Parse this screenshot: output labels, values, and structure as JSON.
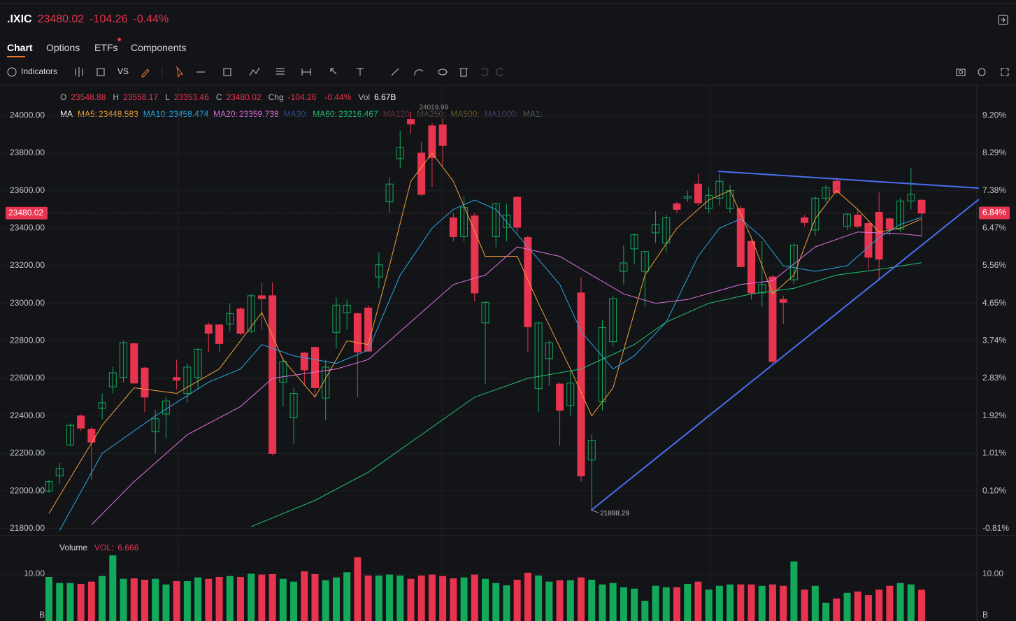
{
  "header": {
    "symbol": ".IXIC",
    "price": 23480.02,
    "change": -104.26,
    "change_pct": "-0.44%"
  },
  "tabs": [
    "Chart",
    "Options",
    "ETFs",
    "Components"
  ],
  "toolbar": {
    "indicators": "Indicators",
    "compare": "VS"
  },
  "ohlc": {
    "o_label": "O",
    "o": 23548.88,
    "h_label": "H",
    "h": 23558.17,
    "l_label": "L",
    "l": 23353.46,
    "c_label": "C",
    "c": 23480.02,
    "chg_label": "Chg",
    "chg": -104.26,
    "chg_pct": "-0.44%",
    "vol_label": "Vol",
    "vol": "6.67B"
  },
  "chart_data": {
    "type": "candlestick",
    "up_color": "#12a95b",
    "down_color": "#e8344e",
    "ylim": [
      21762,
      24161
    ],
    "yticks": [
      {
        "value": 24000,
        "label": "24000.00"
      },
      {
        "value": 23800,
        "label": "23800.00"
      },
      {
        "value": 23600,
        "label": "23600.00"
      },
      {
        "value": 23400,
        "label": "23400.00"
      },
      {
        "value": 23200,
        "label": "23200.00"
      },
      {
        "value": 23000,
        "label": "23000.00"
      },
      {
        "value": 22800,
        "label": "22800.00"
      },
      {
        "value": 22600,
        "label": "22600.00"
      },
      {
        "value": 22400,
        "label": "22400.00"
      },
      {
        "value": 22200,
        "label": "22200.00"
      },
      {
        "value": 22000,
        "label": "22000.00"
      },
      {
        "value": 21800,
        "label": "21800.00"
      }
    ],
    "y2lim": [
      -0.983,
      9.933
    ],
    "y2ticks": [
      {
        "value": 9.2,
        "label": "9.20%"
      },
      {
        "value": 8.29,
        "label": "8.29%"
      },
      {
        "value": 7.38,
        "label": "7.38%"
      },
      {
        "value": 6.47,
        "label": "6.47%"
      },
      {
        "value": 5.56,
        "label": "5.56%"
      },
      {
        "value": 4.65,
        "label": "4.65%"
      },
      {
        "value": 3.74,
        "label": "3.74%"
      },
      {
        "value": 2.83,
        "label": "2.83%"
      },
      {
        "value": 1.92,
        "label": "1.92%"
      },
      {
        "value": 1.01,
        "label": "1.01%"
      },
      {
        "value": 0.1,
        "label": "0.10%"
      },
      {
        "value": -0.81,
        "label": "-0.81%"
      }
    ],
    "last_pct": {
      "value": 6.84,
      "label": "6.84%"
    },
    "open": [
      22000,
      22080,
      22245,
      22400,
      22330,
      22440,
      22555,
      22605,
      22785,
      22655,
      22315,
      22410,
      22605,
      22520,
      22605,
      22885,
      22885,
      22890,
      22970,
      22850,
      23040,
      23040,
      22580,
      22390,
      22735,
      22765,
      22495,
      22845,
      22950,
      22945,
      22975,
      23140,
      23540,
      23770,
      23980,
      23800,
      23945,
      23950,
      23455,
      23355,
      23465,
      22895,
      23355,
      23405,
      23565,
      23350,
      22545,
      22705,
      22570,
      22455,
      23055,
      22165,
      22475,
      22795,
      23170,
      23290,
      23170,
      23375,
      23320,
      23530,
      23560,
      23635,
      23505,
      23560,
      23505,
      23505,
      23330,
      23055,
      23140,
      23020,
      23125,
      23455,
      23390,
      23560,
      23650,
      23410,
      23470,
      23425,
      23485,
      23450,
      23395,
      23545,
      23548.88
    ],
    "high": [
      22060,
      22150,
      22360,
      22410,
      22340,
      22520,
      22660,
      22800,
      22790,
      22660,
      22430,
      22500,
      22700,
      22680,
      22760,
      22900,
      22890,
      23000,
      22980,
      23050,
      23110,
      23110,
      22710,
      22550,
      22740,
      22770,
      22700,
      23030,
      23020,
      22950,
      22990,
      23270,
      23670,
      23920,
      24019.99,
      23860,
      23960,
      23985,
      23480,
      23570,
      23480,
      23010,
      23535,
      23530,
      23570,
      23360,
      22900,
      22800,
      22580,
      22640,
      23140,
      22300,
      22910,
      23040,
      23310,
      23370,
      23280,
      23490,
      23470,
      23540,
      23600,
      23690,
      23620,
      23690,
      23630,
      23520,
      23340,
      23330,
      23150,
      23040,
      23320,
      23470,
      23570,
      23630,
      23670,
      23480,
      23500,
      23440,
      23590,
      23460,
      23560,
      23720,
      23558.17
    ],
    "low": [
      21990,
      22040,
      22240,
      22320,
      22060,
      22380,
      22520,
      22580,
      22570,
      22420,
      22200,
      22280,
      22540,
      22470,
      22540,
      22740,
      22740,
      22850,
      22830,
      22840,
      22860,
      22190,
      22450,
      22250,
      22560,
      22500,
      22380,
      22760,
      22860,
      22500,
      22740,
      23080,
      23480,
      23720,
      23900,
      23570,
      23620,
      23730,
      23330,
      23330,
      23010,
      22570,
      23300,
      23330,
      23370,
      22740,
      22420,
      22560,
      22240,
      22400,
      22050,
      21898.29,
      22430,
      22770,
      23100,
      23210,
      22980,
      23320,
      23270,
      23480,
      23540,
      23520,
      23480,
      23520,
      23480,
      23190,
      23020,
      22980,
      22680,
      22890,
      23100,
      23410,
      23360,
      23540,
      23580,
      23390,
      23400,
      23180,
      23120,
      23360,
      23380,
      23500,
      23353.46
    ],
    "close": [
      22050,
      22120,
      22350,
      22335,
      22260,
      22470,
      22630,
      22790,
      22575,
      22500,
      22385,
      22480,
      22590,
      22660,
      22755,
      22840,
      22785,
      22945,
      22840,
      23040,
      23025,
      22200,
      22690,
      22520,
      22645,
      22550,
      22660,
      22990,
      22990,
      22740,
      22745,
      23205,
      23635,
      23830,
      23955,
      23580,
      23775,
      23840,
      23355,
      23510,
      23055,
      23005,
      23530,
      23470,
      23405,
      22875,
      22895,
      22790,
      22430,
      22575,
      22080,
      22270,
      22870,
      23025,
      23215,
      23365,
      23275,
      23420,
      23455,
      23500,
      23570,
      23535,
      23575,
      23650,
      23600,
      23195,
      23055,
      23100,
      22690,
      23005,
      23310,
      23430,
      23560,
      23615,
      23590,
      23475,
      23410,
      23245,
      23235,
      23395,
      23545,
      23580,
      23480.02
    ],
    "volume_label": "Volume",
    "vol_indicator": "VOL:",
    "volume": [
      9.4,
      8.1,
      8.1,
      7.9,
      8.4,
      9.6,
      14.0,
      9.0,
      9.1,
      8.8,
      9.0,
      7.8,
      8.5,
      8.5,
      9.3,
      9.0,
      9.4,
      9.6,
      9.4,
      10.1,
      9.9,
      10.0,
      9.0,
      8.4,
      10.6,
      10.0,
      8.7,
      9.3,
      10.4,
      13.6,
      9.7,
      9.7,
      9.9,
      9.7,
      9.0,
      9.7,
      9.9,
      9.6,
      9.1,
      9.3,
      9.9,
      9.0,
      8.1,
      7.6,
      8.8,
      10.3,
      9.7,
      8.4,
      8.7,
      8.7,
      9.3,
      8.8,
      7.8,
      8.1,
      7.2,
      6.9,
      4.3,
      7.5,
      7.2,
      7.2,
      7.9,
      8.4,
      6.7,
      7.5,
      7.8,
      7.8,
      7.8,
      7.5,
      7.8,
      7.5,
      12.7,
      6.7,
      7.5,
      3.9,
      4.8,
      6.0,
      6.3,
      5.5,
      6.7,
      7.5,
      8.1,
      7.8,
      6.666
    ],
    "vol_ylim": [
      0,
      17.6
    ],
    "vol_yticks": [
      {
        "value": 10,
        "label": "10.00"
      }
    ],
    "vol_unit": "B",
    "ma_label": "MA",
    "series": [
      {
        "name": "MA5:",
        "color": "#f0a23a",
        "x": [
          0,
          5,
          8,
          12,
          16,
          20,
          22,
          25,
          28,
          30,
          32,
          34,
          36,
          38,
          41,
          44,
          46,
          49,
          51,
          53,
          56,
          59,
          62,
          64,
          66,
          68,
          70,
          72,
          74,
          76,
          78,
          80,
          82
        ],
        "values": [
          21880,
          22350,
          22550,
          22520,
          22650,
          22950,
          22700,
          22500,
          22800,
          22780,
          23200,
          23650,
          23800,
          23650,
          23250,
          23250,
          23000,
          22650,
          22400,
          22550,
          23150,
          23400,
          23550,
          23600,
          23350,
          23050,
          23150,
          23450,
          23600,
          23500,
          23380,
          23400,
          23448.583
        ]
      },
      {
        "name": "MA10:",
        "color": "#2aa8e2",
        "x": [
          1,
          5,
          10,
          15,
          18,
          20,
          23,
          27,
          30,
          33,
          36,
          38,
          40,
          42,
          45,
          48,
          50,
          53,
          55,
          58,
          61,
          63,
          65,
          67,
          69,
          72,
          75,
          78,
          80,
          82
        ],
        "values": [
          21790,
          22200,
          22400,
          22580,
          22650,
          22780,
          22720,
          22680,
          22750,
          23150,
          23400,
          23500,
          23550,
          23500,
          23300,
          23100,
          22850,
          22650,
          22720,
          22900,
          23250,
          23400,
          23450,
          23350,
          23200,
          23170,
          23200,
          23350,
          23420,
          23458.474
        ]
      },
      {
        "name": "MA20:",
        "color": "#e073e0",
        "x": [
          4,
          8,
          13,
          18,
          21,
          27,
          30,
          35,
          38,
          41,
          44,
          48,
          51,
          54,
          57,
          60,
          65,
          68,
          72,
          76,
          80,
          82
        ],
        "values": [
          21820,
          22050,
          22300,
          22450,
          22600,
          22650,
          22700,
          22950,
          23100,
          23150,
          23300,
          23250,
          23150,
          23050,
          23000,
          23020,
          23100,
          23120,
          23300,
          23380,
          23370,
          23359.738
        ]
      },
      {
        "name": "MA60:",
        "color": "#22c272",
        "x": [
          19,
          25,
          30,
          35,
          40,
          45,
          50,
          55,
          58,
          62,
          66,
          70,
          74,
          78,
          82
        ],
        "values": [
          21810,
          21950,
          22100,
          22300,
          22500,
          22600,
          22650,
          22780,
          22900,
          23000,
          23050,
          23080,
          23150,
          23180,
          23216.467
        ]
      }
    ],
    "inactive": [
      {
        "name": "MA30:",
        "color": "#2d4f8a"
      },
      {
        "name": "MA120:",
        "color": "#6a2f3a"
      },
      {
        "name": "MA250:",
        "color": "#5a4a3a"
      },
      {
        "name": "MA500:",
        "color": "#6b5a2a"
      },
      {
        "name": "MA1000:",
        "color": "#4a3a6a"
      },
      {
        "name": "MA1:",
        "color": "#555a60"
      }
    ]
  }
}
